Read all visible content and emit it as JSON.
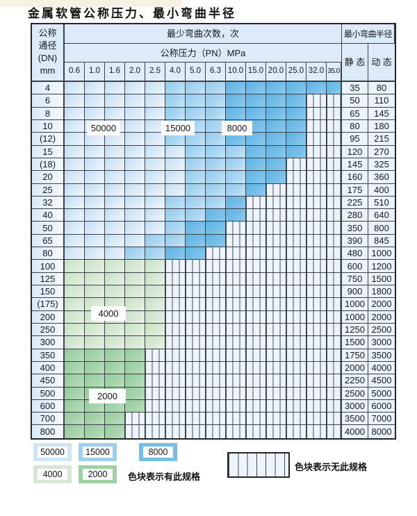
{
  "title": "金属软管公称压力、最小弯曲半径",
  "colors": {
    "blue_50000": "#cfe4f5",
    "blue_15000": "#9ed0ee",
    "blue_8000": "#76bee8",
    "green_4000": "#d5e8d2",
    "green_2000": "#9ed1a3",
    "hatch_cell_bg": "#eef4fc",
    "grid_line": "#39404a",
    "header_bg": "#dcebf7"
  },
  "table": {
    "dn_header": [
      "公称",
      "通径",
      "(DN)",
      "mm"
    ],
    "cycles_header": "最少弯曲次数，次",
    "pressure_header": "公称压力（PN）MPa",
    "radius_header": "最小弯曲半径",
    "static_header": "静 态",
    "dynamic_header": "动 态",
    "pressures": [
      "0.6",
      "1.0",
      "1.6",
      "2.0",
      "2.5",
      "4.0",
      "5.0",
      "6.3",
      "10.0",
      "15.0",
      "20.0",
      "25.0",
      "32.0",
      "35.0"
    ],
    "cell_code_key": {
      "L": "blue 50000 cycles",
      "M": "blue 15000 cycles",
      "D": "blue 8000 cycles",
      "G": "green 4000 cycles",
      "H": "green 2000 cycles",
      "X": "hatched — no such specification"
    },
    "rows": [
      {
        "dn": "4",
        "cells": [
          "L",
          "L",
          "L",
          "L",
          "L",
          "M",
          "M",
          "M",
          "D",
          "D",
          "D",
          "D",
          "D",
          "D"
        ],
        "static": "35",
        "dynamic": "80"
      },
      {
        "dn": "6",
        "cells": [
          "L",
          "L",
          "L",
          "L",
          "L",
          "M",
          "M",
          "M",
          "D",
          "D",
          "D",
          "D",
          "X",
          "X"
        ],
        "static": "50",
        "dynamic": "110"
      },
      {
        "dn": "8",
        "cells": [
          "L",
          "L",
          "L",
          "L",
          "L",
          "M",
          "M",
          "M",
          "D",
          "D",
          "D",
          "D",
          "X",
          "X"
        ],
        "static": "65",
        "dynamic": "145"
      },
      {
        "dn": "10",
        "cells": [
          "L",
          "L",
          "L",
          "L",
          "L",
          "M",
          "M",
          "M",
          "D",
          "D",
          "D",
          "D",
          "X",
          "X"
        ],
        "static": "80",
        "dynamic": "180"
      },
      {
        "dn": "(12)",
        "cells": [
          "L",
          "L",
          "L",
          "L",
          "L",
          "M",
          "M",
          "M",
          "D",
          "D",
          "D",
          "D",
          "X",
          "X"
        ],
        "static": "95",
        "dynamic": "215"
      },
      {
        "dn": "15",
        "cells": [
          "L",
          "L",
          "L",
          "L",
          "L",
          "L",
          "M",
          "M",
          "M",
          "D",
          "D",
          "D",
          "X",
          "X"
        ],
        "static": "120",
        "dynamic": "270"
      },
      {
        "dn": "(18)",
        "cells": [
          "L",
          "L",
          "L",
          "L",
          "L",
          "L",
          "M",
          "M",
          "M",
          "D",
          "D",
          "X",
          "X",
          "X"
        ],
        "static": "145",
        "dynamic": "325"
      },
      {
        "dn": "20",
        "cells": [
          "L",
          "L",
          "L",
          "L",
          "L",
          "L",
          "M",
          "M",
          "M",
          "D",
          "D",
          "X",
          "X",
          "X"
        ],
        "static": "160",
        "dynamic": "360"
      },
      {
        "dn": "25",
        "cells": [
          "L",
          "L",
          "L",
          "L",
          "L",
          "L",
          "M",
          "M",
          "M",
          "D",
          "X",
          "X",
          "X",
          "X"
        ],
        "static": "175",
        "dynamic": "400"
      },
      {
        "dn": "32",
        "cells": [
          "L",
          "L",
          "L",
          "L",
          "L",
          "M",
          "M",
          "M",
          "D",
          "X",
          "X",
          "X",
          "X",
          "X"
        ],
        "static": "225",
        "dynamic": "510"
      },
      {
        "dn": "40",
        "cells": [
          "L",
          "L",
          "L",
          "L",
          "L",
          "M",
          "M",
          "D",
          "D",
          "X",
          "X",
          "X",
          "X",
          "X"
        ],
        "static": "280",
        "dynamic": "640"
      },
      {
        "dn": "50",
        "cells": [
          "L",
          "L",
          "L",
          "L",
          "L",
          "M",
          "D",
          "D",
          "X",
          "X",
          "X",
          "X",
          "X",
          "X"
        ],
        "static": "350",
        "dynamic": "800"
      },
      {
        "dn": "65",
        "cells": [
          "L",
          "L",
          "L",
          "L",
          "M",
          "M",
          "D",
          "D",
          "X",
          "X",
          "X",
          "X",
          "X",
          "X"
        ],
        "static": "390",
        "dynamic": "845"
      },
      {
        "dn": "80",
        "cells": [
          "L",
          "L",
          "L",
          "M",
          "M",
          "D",
          "D",
          "X",
          "X",
          "X",
          "X",
          "X",
          "X",
          "X"
        ],
        "static": "480",
        "dynamic": "1000"
      },
      {
        "dn": "100",
        "cells": [
          "G",
          "G",
          "G",
          "G",
          "G",
          "X",
          "X",
          "X",
          "X",
          "X",
          "X",
          "X",
          "X",
          "X"
        ],
        "static": "600",
        "dynamic": "1200"
      },
      {
        "dn": "125",
        "cells": [
          "G",
          "G",
          "G",
          "G",
          "G",
          "X",
          "X",
          "X",
          "X",
          "X",
          "X",
          "X",
          "X",
          "X"
        ],
        "static": "750",
        "dynamic": "1500"
      },
      {
        "dn": "150",
        "cells": [
          "G",
          "G",
          "G",
          "G",
          "G",
          "X",
          "X",
          "X",
          "X",
          "X",
          "X",
          "X",
          "X",
          "X"
        ],
        "static": "900",
        "dynamic": "1800"
      },
      {
        "dn": "(175)",
        "cells": [
          "G",
          "G",
          "G",
          "G",
          "G",
          "X",
          "X",
          "X",
          "X",
          "X",
          "X",
          "X",
          "X",
          "X"
        ],
        "static": "1000",
        "dynamic": "2000"
      },
      {
        "dn": "200",
        "cells": [
          "G",
          "G",
          "G",
          "G",
          "G",
          "X",
          "X",
          "X",
          "X",
          "X",
          "X",
          "X",
          "X",
          "X"
        ],
        "static": "1000",
        "dynamic": "2000"
      },
      {
        "dn": "250",
        "cells": [
          "G",
          "G",
          "G",
          "G",
          "G",
          "X",
          "X",
          "X",
          "X",
          "X",
          "X",
          "X",
          "X",
          "X"
        ],
        "static": "1250",
        "dynamic": "2500"
      },
      {
        "dn": "300",
        "cells": [
          "G",
          "G",
          "G",
          "G",
          "G",
          "X",
          "X",
          "X",
          "X",
          "X",
          "X",
          "X",
          "X",
          "X"
        ],
        "static": "1500",
        "dynamic": "3000"
      },
      {
        "dn": "350",
        "cells": [
          "H",
          "H",
          "H",
          "H",
          "X",
          "X",
          "X",
          "X",
          "X",
          "X",
          "X",
          "X",
          "X",
          "X"
        ],
        "static": "1750",
        "dynamic": "3500"
      },
      {
        "dn": "400",
        "cells": [
          "H",
          "H",
          "H",
          "H",
          "X",
          "X",
          "X",
          "X",
          "X",
          "X",
          "X",
          "X",
          "X",
          "X"
        ],
        "static": "2000",
        "dynamic": "4000"
      },
      {
        "dn": "450",
        "cells": [
          "H",
          "H",
          "H",
          "H",
          "X",
          "X",
          "X",
          "X",
          "X",
          "X",
          "X",
          "X",
          "X",
          "X"
        ],
        "static": "2250",
        "dynamic": "4500"
      },
      {
        "dn": "500",
        "cells": [
          "H",
          "H",
          "H",
          "H",
          "X",
          "X",
          "X",
          "X",
          "X",
          "X",
          "X",
          "X",
          "X",
          "X"
        ],
        "static": "2500",
        "dynamic": "5000"
      },
      {
        "dn": "600",
        "cells": [
          "H",
          "H",
          "H",
          "H",
          "X",
          "X",
          "X",
          "X",
          "X",
          "X",
          "X",
          "X",
          "X",
          "X"
        ],
        "static": "3000",
        "dynamic": "6000"
      },
      {
        "dn": "700",
        "cells": [
          "H",
          "H",
          "H",
          "X",
          "X",
          "X",
          "X",
          "X",
          "X",
          "X",
          "X",
          "X",
          "X",
          "X"
        ],
        "static": "3500",
        "dynamic": "7000"
      },
      {
        "dn": "800",
        "cells": [
          "H",
          "H",
          "H",
          "X",
          "X",
          "X",
          "X",
          "X",
          "X",
          "X",
          "X",
          "X",
          "X",
          "X"
        ],
        "static": "4000",
        "dynamic": "8000"
      }
    ]
  },
  "cycle_labels": {
    "b50000": "50000",
    "b15000": "15000",
    "b8000": "8000",
    "g4000": "4000",
    "g2000": "2000"
  },
  "legend": {
    "items": [
      {
        "label": "50000",
        "color": "#cfe4f5"
      },
      {
        "label": "15000",
        "color": "#9ed0ee"
      },
      {
        "label": "8000",
        "color": "#76bee8"
      },
      {
        "label": "4000",
        "color": "#d5e8d2"
      },
      {
        "label": "2000",
        "color": "#9ed1a3"
      }
    ],
    "present_note": "色块表示有此规格",
    "absent_note": "色块表示无此规格"
  }
}
